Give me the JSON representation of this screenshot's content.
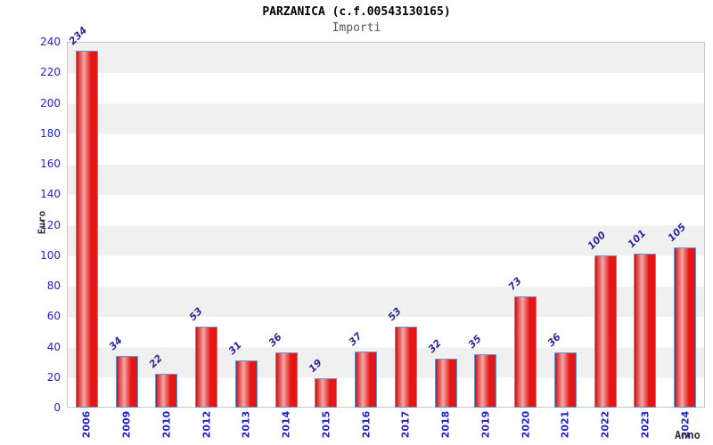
{
  "header": {
    "title": "PARZANICA (c.f.00543130165)",
    "subtitle": "Importi"
  },
  "chart_data": {
    "type": "bar",
    "title": "PARZANICA (c.f.00543130165)",
    "subtitle": "Importi",
    "xlabel": "Anno",
    "ylabel": "Euro",
    "categories": [
      "2006",
      "2009",
      "2010",
      "2012",
      "2013",
      "2014",
      "2015",
      "2016",
      "2017",
      "2018",
      "2019",
      "2020",
      "2021",
      "2022",
      "2023",
      "2024"
    ],
    "values": [
      234,
      34,
      22,
      53,
      31,
      36,
      19,
      37,
      53,
      32,
      35,
      73,
      36,
      100,
      101,
      105
    ],
    "ylim": [
      0,
      240
    ],
    "ytick_step": 20,
    "grid": "alternating-horizontal-bands",
    "legend": "none"
  },
  "colors": {
    "background": "#ffffff",
    "title": "#000000",
    "subtitle": "#555555",
    "axis_title": "#333333",
    "tick_label": "#2222cc",
    "value_label": "#2a2a9e",
    "plot_border": "#c9c9c9",
    "band_gray": "#f0f0f0",
    "band_white": "#ffffff",
    "bar_border": "#5e97d8",
    "bar_gradient_edge": "#cc1010",
    "bar_gradient_light": "#f5a7a7",
    "bar_gradient_body": "#e41515"
  }
}
